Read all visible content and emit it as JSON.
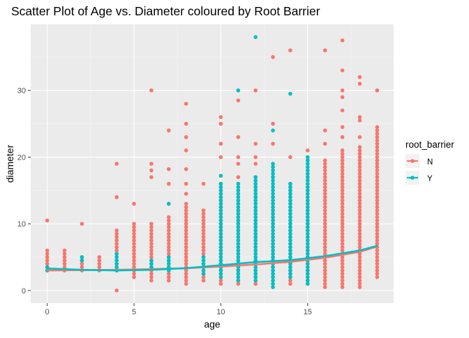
{
  "chart_data": {
    "type": "scatter",
    "title": "Scatter Plot of Age vs. Diameter coloured by Root Barrier",
    "xlabel": "age",
    "ylabel": "diameter",
    "xlim": [
      -0.95,
      19.95
    ],
    "ylim": [
      -1.9,
      39.9
    ],
    "xticks": [
      0,
      5,
      10,
      15
    ],
    "yticks": [
      0,
      10,
      20,
      30
    ],
    "grid": true,
    "legend": {
      "title": "root_barrier",
      "position": "right",
      "entries": [
        {
          "label": "N",
          "color": "#F8766D"
        },
        {
          "label": "Y",
          "color": "#00BFC4"
        }
      ]
    },
    "series": [
      {
        "name": "N",
        "color": "#F8766D",
        "columns": [
          {
            "x": 0,
            "min": 3,
            "max": 6,
            "extra": [
              10.5
            ]
          },
          {
            "x": 1,
            "min": 3,
            "max": 6
          },
          {
            "x": 2,
            "min": 3,
            "max": 5,
            "extra": [
              10
            ]
          },
          {
            "x": 3,
            "min": 3,
            "max": 5
          },
          {
            "x": 4,
            "min": 3,
            "max": 9,
            "extra": [
              0,
              14,
              19
            ]
          },
          {
            "x": 5,
            "min": 2,
            "max": 10,
            "extra": [
              13
            ]
          },
          {
            "x": 6,
            "min": 1.5,
            "max": 10,
            "extra": [
              17,
              18,
              19,
              30
            ]
          },
          {
            "x": 7,
            "min": 1.5,
            "max": 11,
            "extra": [
              13,
              16,
              18.2,
              24
            ]
          },
          {
            "x": 8,
            "min": 1,
            "max": 13,
            "extra": [
              14.5,
              16,
              18.2,
              21,
              23,
              25,
              28
            ]
          },
          {
            "x": 9,
            "min": 1.5,
            "max": 12,
            "extra": [
              16
            ]
          },
          {
            "x": 10,
            "min": 1,
            "max": 16,
            "extra": [
              20,
              22,
              25,
              26
            ]
          },
          {
            "x": 11,
            "min": 1,
            "max": 15,
            "extra": [
              17,
              19,
              20,
              23,
              28.5
            ]
          },
          {
            "x": 12,
            "min": 1,
            "max": 17,
            "extra": [
              19,
              20,
              22,
              30
            ]
          },
          {
            "x": 13,
            "min": 1.5,
            "max": 14,
            "extra": [
              17,
              22,
              25,
              35
            ]
          },
          {
            "x": 14,
            "min": 1,
            "max": 16,
            "extra": [
              20,
              36
            ]
          },
          {
            "x": 15,
            "min": 1.5,
            "max": 18,
            "extra": [
              19.5,
              21
            ]
          },
          {
            "x": 16,
            "min": 0.5,
            "max": 19.5,
            "extra": [
              22,
              24,
              36
            ]
          },
          {
            "x": 17,
            "min": 0.5,
            "max": 21,
            "extra": [
              23,
              24.5,
              27,
              29,
              30,
              33,
              37.5
            ]
          },
          {
            "x": 18,
            "min": 0.5,
            "max": 21.5,
            "extra": [
              23,
              25.5,
              26,
              31,
              32
            ]
          },
          {
            "x": 19,
            "min": 2,
            "max": 24.5,
            "extra": [
              30
            ]
          }
        ]
      },
      {
        "name": "Y",
        "color": "#00BFC4",
        "columns": [
          {
            "x": 0,
            "min": 3,
            "max": 3.5
          },
          {
            "x": 2,
            "min": 4.5,
            "max": 5
          },
          {
            "x": 4,
            "min": 3,
            "max": 5.5
          },
          {
            "x": 6,
            "min": 3.5,
            "max": 4.5
          },
          {
            "x": 7,
            "min": 3,
            "max": 5,
            "extra": [
              13
            ]
          },
          {
            "x": 9,
            "min": 2.5,
            "max": 5
          },
          {
            "x": 10,
            "min": 2,
            "max": 16,
            "extra": [
              17.2
            ]
          },
          {
            "x": 11,
            "min": 1.5,
            "max": 16,
            "extra": [
              30
            ]
          },
          {
            "x": 12,
            "min": 1.5,
            "max": 17,
            "extra": [
              38
            ]
          },
          {
            "x": 13,
            "min": 0.5,
            "max": 19,
            "extra": [
              24
            ]
          },
          {
            "x": 14,
            "min": 2,
            "max": 16,
            "extra": [
              29.5
            ]
          },
          {
            "x": 15,
            "min": 1,
            "max": 20
          }
        ]
      }
    ],
    "trend": [
      {
        "name": "N",
        "color": "#F8766D",
        "points": [
          [
            0,
            3.0
          ],
          [
            2,
            3.05
          ],
          [
            4,
            3.1
          ],
          [
            6,
            3.2
          ],
          [
            8,
            3.35
          ],
          [
            10,
            3.6
          ],
          [
            12,
            3.9
          ],
          [
            14,
            4.3
          ],
          [
            16,
            4.9
          ],
          [
            18,
            5.8
          ],
          [
            19,
            6.6
          ]
        ]
      },
      {
        "name": "Y",
        "color": "#00BFC4",
        "points": [
          [
            0,
            3.3
          ],
          [
            2,
            3.1
          ],
          [
            4,
            3.0
          ],
          [
            6,
            3.1
          ],
          [
            8,
            3.35
          ],
          [
            10,
            3.8
          ],
          [
            12,
            4.25
          ],
          [
            14,
            4.55
          ],
          [
            16,
            5.15
          ],
          [
            18,
            6.0
          ],
          [
            19,
            6.7
          ]
        ]
      }
    ]
  }
}
